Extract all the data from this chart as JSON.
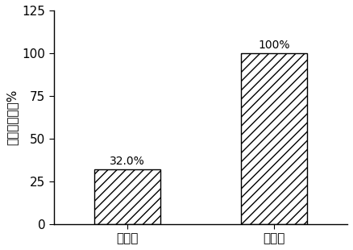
{
  "categories": [
    "第一类",
    "第二类"
  ],
  "values": [
    32.0,
    100.0
  ],
  "bar_labels": [
    "32.0%",
    "100%"
  ],
  "ylabel": "相对电阻率，%",
  "ylim": [
    0,
    125
  ],
  "yticks": [
    0,
    25,
    50,
    75,
    100,
    125
  ],
  "hatch": "///",
  "bar_color": "white",
  "bar_edgecolor": "black",
  "bar_width": 0.45,
  "label_fontsize": 10,
  "tick_fontsize": 11,
  "ylabel_fontsize": 11,
  "background_color": "white",
  "x_positions": [
    0.25,
    0.75
  ]
}
